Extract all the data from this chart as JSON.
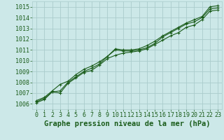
{
  "background_color": "#cce8e8",
  "grid_color": "#aacccc",
  "line_color": "#1a5c1a",
  "title": "Graphe pression niveau de la mer (hPa)",
  "xlim": [
    -0.5,
    23.5
  ],
  "ylim": [
    1005.5,
    1015.5
  ],
  "yticks": [
    1006,
    1007,
    1008,
    1009,
    1010,
    1011,
    1012,
    1013,
    1014,
    1015
  ],
  "xticks": [
    0,
    1,
    2,
    3,
    4,
    5,
    6,
    7,
    8,
    9,
    10,
    11,
    12,
    13,
    14,
    15,
    16,
    17,
    18,
    19,
    20,
    21,
    22,
    23
  ],
  "series": [
    [
      1006.2,
      1006.5,
      1007.1,
      1007.2,
      1008.0,
      1008.5,
      1009.0,
      1009.3,
      1009.7,
      1010.4,
      1011.0,
      1010.9,
      1010.9,
      1011.0,
      1011.2,
      1011.6,
      1012.2,
      1012.6,
      1013.0,
      1013.4,
      1013.6,
      1014.0,
      1014.8,
      1014.9
    ],
    [
      1006.1,
      1006.4,
      1007.1,
      1007.0,
      1007.9,
      1008.4,
      1008.9,
      1009.1,
      1009.6,
      1010.2,
      1010.5,
      1010.7,
      1010.8,
      1010.9,
      1011.1,
      1011.5,
      1011.9,
      1012.3,
      1012.6,
      1013.1,
      1013.3,
      1013.8,
      1014.6,
      1014.7
    ],
    [
      1006.3,
      1006.6,
      1007.2,
      1007.8,
      1008.1,
      1008.7,
      1009.2,
      1009.5,
      1009.9,
      1010.4,
      1011.1,
      1011.0,
      1011.0,
      1011.1,
      1011.4,
      1011.8,
      1012.3,
      1012.7,
      1013.1,
      1013.5,
      1013.8,
      1014.1,
      1015.0,
      1015.1
    ]
  ],
  "marker": "+",
  "markersize": 3,
  "linewidth": 0.8,
  "title_fontsize": 7.5,
  "tick_fontsize": 6,
  "xlabel_fontsize": 6
}
